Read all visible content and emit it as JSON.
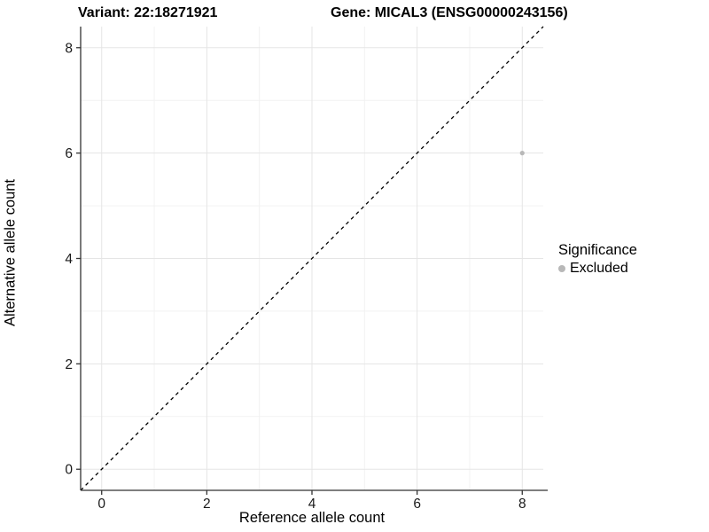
{
  "header": {
    "title_left": "Variant: 22:18271921",
    "title_right": "Gene: MICAL3 (ENSG00000243156)"
  },
  "chart_data": {
    "type": "scatter",
    "title_left": "Variant: 22:18271921",
    "title_right": "Gene: MICAL3 (ENSG00000243156)",
    "xlabel": "Reference allele count",
    "ylabel": "Alternative allele count",
    "xlim": [
      -0.4,
      8.4
    ],
    "ylim": [
      -0.4,
      8.4
    ],
    "x_ticks": [
      0,
      2,
      4,
      6,
      8
    ],
    "y_ticks": [
      0,
      2,
      4,
      6,
      8
    ],
    "x_minor_ticks": [
      1,
      3,
      5,
      7
    ],
    "y_minor_ticks": [
      1,
      3,
      5,
      7
    ],
    "grid": "major+minor",
    "identity_line": {
      "slope": 1,
      "intercept": 0,
      "style": "dashed",
      "color": "#000000"
    },
    "points": [
      {
        "x": 8,
        "y": 6,
        "series": "Excluded",
        "color": "#b8b8b8"
      }
    ],
    "legend": {
      "position": "right",
      "title": "Significance",
      "items": [
        {
          "label": "Excluded",
          "color": "#b8b8b8"
        }
      ]
    },
    "colors": {
      "background": "#ffffff",
      "major_grid": "#e5e5e5",
      "minor_grid": "#f2f2f2",
      "axis_line": "#333333",
      "tick_mark": "#333333",
      "tick_label": "#1a1a1a",
      "point": "#b8b8b8"
    }
  }
}
